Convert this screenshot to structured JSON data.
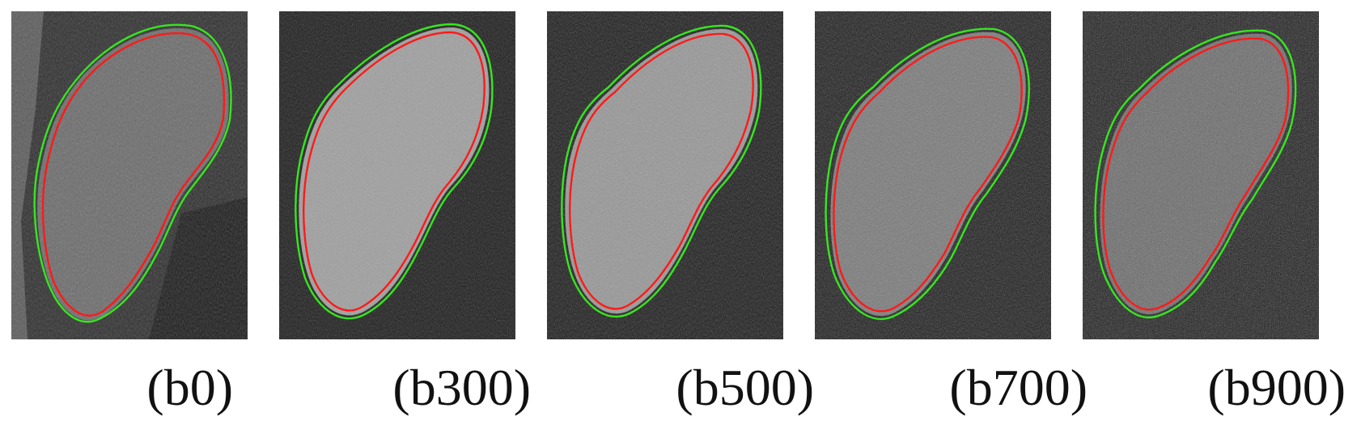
{
  "figure": {
    "panels": [
      {
        "id": "b0",
        "label": "(b0)",
        "organ_brightness": 0.42,
        "background_brightness": 0.18
      },
      {
        "id": "b300",
        "label": "(b300)",
        "organ_brightness": 0.62,
        "background_brightness": 0.1
      },
      {
        "id": "b500",
        "label": "(b500)",
        "organ_brightness": 0.58,
        "background_brightness": 0.08
      },
      {
        "id": "b700",
        "label": "(b700)",
        "organ_brightness": 0.45,
        "background_brightness": 0.07
      },
      {
        "id": "b900",
        "label": "(b900)",
        "organ_brightness": 0.38,
        "background_brightness": 0.06
      }
    ],
    "contour_colors": {
      "green": "#37e61f",
      "red": "#ff1a1a"
    }
  }
}
